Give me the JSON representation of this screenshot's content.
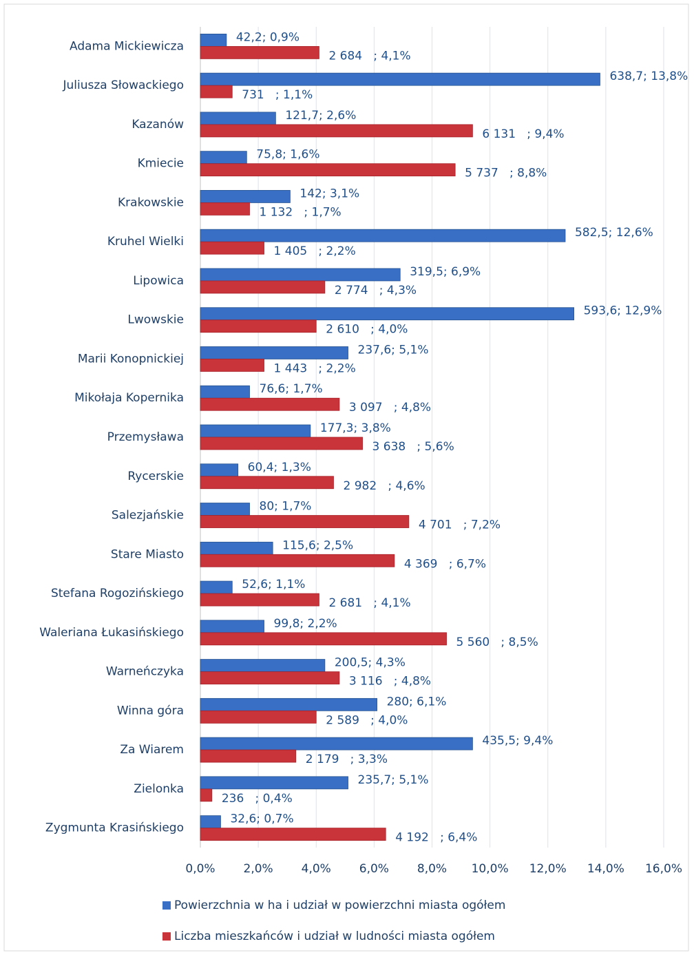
{
  "chart_data": {
    "type": "bar",
    "orientation": "horizontal",
    "categories": [
      "Adama Mickiewicza",
      "Juliusza Słowackiego",
      "Kazanów",
      "Kmiecie",
      "Krakowskie",
      "Kruhel Wielki",
      "Lipowica",
      "Lwowskie",
      "Marii Konopnickiej",
      "Mikołaja Kopernika",
      "Przemysława",
      "Rycerskie",
      "Salezjańskie",
      "Stare Miasto",
      "Stefana Rogozińskiego",
      "Waleriana Łukasińskiego",
      "Warneńczyka",
      "Winna góra",
      "Za Wiarem",
      "Zielonka",
      "Zygmunta Krasińskiego"
    ],
    "series": [
      {
        "name": "Powierzchnia w ha i udział w powierzchni miasta ogółem",
        "color": "#3a6fc6",
        "values": [
          0.9,
          13.8,
          2.6,
          1.6,
          3.1,
          12.6,
          6.9,
          12.9,
          5.1,
          1.7,
          3.8,
          1.3,
          1.7,
          2.5,
          1.1,
          2.2,
          4.3,
          6.1,
          9.4,
          5.1,
          0.7
        ],
        "value_labels": [
          "42,2; 0,9%",
          "638,7; 13,8%",
          "121,7; 2,6%",
          "75,8; 1,6%",
          "142; 3,1%",
          "582,5; 12,6%",
          "319,5; 6,9%",
          "593,6; 12,9%",
          "237,6; 5,1%",
          "76,6; 1,7%",
          "177,3; 3,8%",
          "60,4; 1,3%",
          "80; 1,7%",
          "115,6; 2,5%",
          "52,6; 1,1%",
          "99,8; 2,2%",
          "200,5; 4,3%",
          "280; 6,1%",
          "435,5; 9,4%",
          "235,7; 5,1%",
          "32,6; 0,7%"
        ]
      },
      {
        "name": "Liczba mieszkańców i udział w ludności miasta ogółem",
        "color": "#c9333a",
        "values": [
          4.1,
          1.1,
          9.4,
          8.8,
          1.7,
          2.2,
          4.3,
          4.0,
          2.2,
          4.8,
          5.6,
          4.6,
          7.2,
          6.7,
          4.1,
          8.5,
          4.8,
          4.0,
          3.3,
          0.4,
          6.4
        ],
        "value_labels": [
          "2 684   ; 4,1%",
          "731   ; 1,1%",
          "6 131   ; 9,4%",
          "5 737   ; 8,8%",
          "1 132   ; 1,7%",
          "1 405   ; 2,2%",
          "2 774   ; 4,3%",
          "2 610   ; 4,0%",
          "1 443   ; 2,2%",
          "3 097   ; 4,8%",
          "3 638   ; 5,6%",
          "2 982   ; 4,6%",
          "4 701   ; 7,2%",
          "4 369   ; 6,7%",
          "2 681   ; 4,1%",
          "5 560   ; 8,5%",
          "3 116   ; 4,8%",
          "2 589   ; 4,0%",
          "2 179   ; 3,3%",
          "236   ; 0,4%",
          "4 192   ; 6,4%"
        ]
      }
    ],
    "xlim": [
      0,
      16
    ],
    "xticks": [
      {
        "value": 0,
        "label": "0,0%"
      },
      {
        "value": 2,
        "label": "2,0%"
      },
      {
        "value": 4,
        "label": "4,0%"
      },
      {
        "value": 6,
        "label": "6,0%"
      },
      {
        "value": 8,
        "label": "8,0%"
      },
      {
        "value": 10,
        "label": "10,0%"
      },
      {
        "value": 12,
        "label": "12,0%"
      },
      {
        "value": 14,
        "label": "14,0%"
      },
      {
        "value": 16,
        "label": "16,0%"
      }
    ],
    "grid": true,
    "legend": "bottom"
  }
}
